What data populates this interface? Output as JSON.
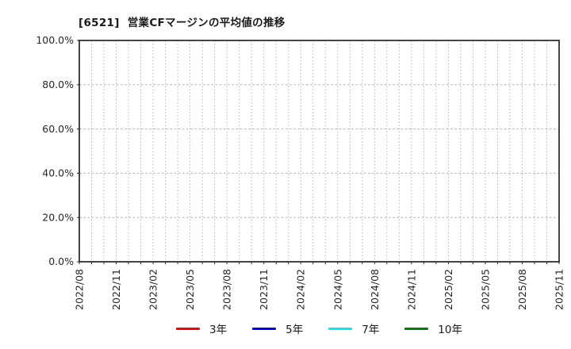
{
  "chart_data": {
    "type": "line",
    "title": "[6521]  営業CFマージンの平均値の推移",
    "x_tick_labels": [
      "2022/08",
      "2022/11",
      "2023/02",
      "2023/05",
      "2023/08",
      "2023/11",
      "2024/02",
      "2024/05",
      "2024/08",
      "2024/11",
      "2025/02",
      "2025/05",
      "2025/08",
      "2025/11"
    ],
    "x_minor_per_major": 3,
    "y_ticks": [
      0,
      20,
      40,
      60,
      80,
      100
    ],
    "y_tick_labels": [
      "0.0%",
      "20.0%",
      "40.0%",
      "60.0%",
      "80.0%",
      "100.0%"
    ],
    "ylim": [
      0,
      100
    ],
    "grid": true,
    "legend_position": "bottom",
    "series": [
      {
        "name": "3年",
        "color": "#ff0000",
        "values": []
      },
      {
        "name": "5年",
        "color": "#0000ff",
        "values": []
      },
      {
        "name": "7年",
        "color": "#00eeee",
        "values": []
      },
      {
        "name": "10年",
        "color": "#008000",
        "values": []
      }
    ]
  }
}
